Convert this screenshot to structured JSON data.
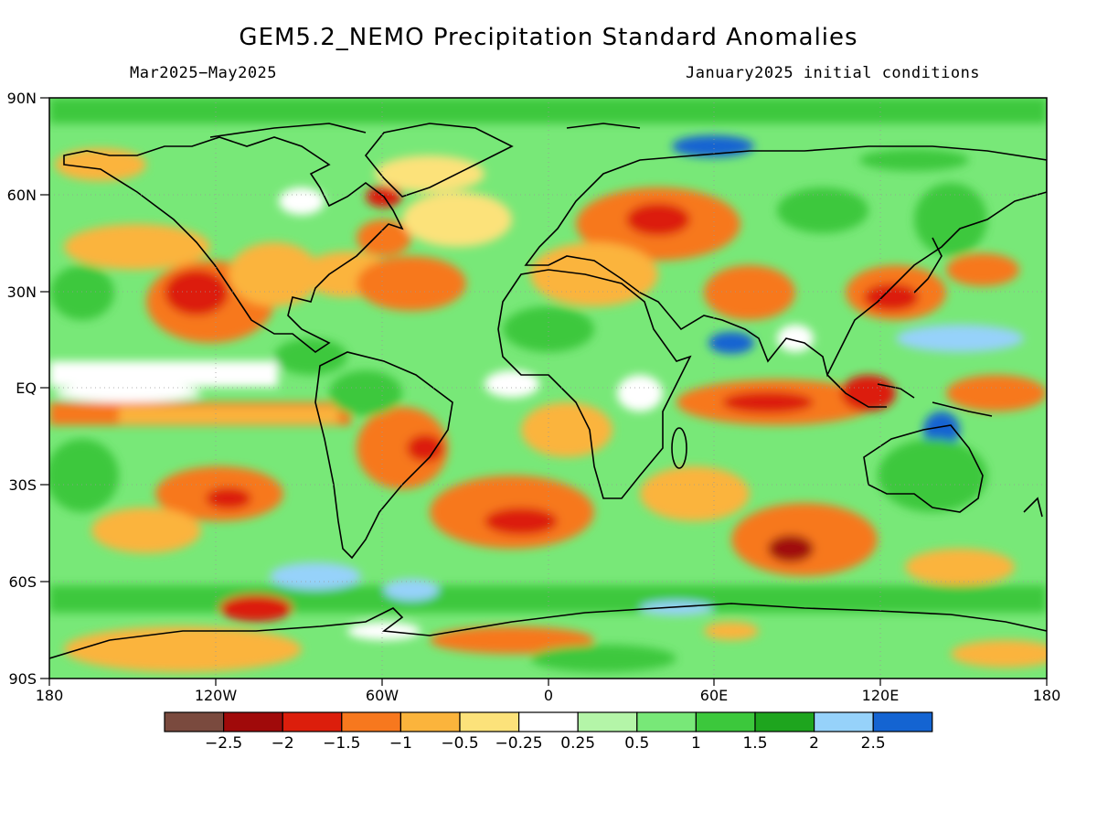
{
  "title": "GEM5.2_NEMO Precipitation Standard Anomalies",
  "subtitle_left": "Mar2025−May2025",
  "subtitle_right": "January2025 initial conditions",
  "map": {
    "lat_labels": [
      "90N",
      "60N",
      "30N",
      "EQ",
      "30S",
      "60S",
      "90S"
    ],
    "lon_labels": [
      "180",
      "120W",
      "60W",
      "0",
      "60E",
      "120E",
      "180"
    ],
    "colors": {
      "frame": "#000000",
      "coastline": "#000000"
    }
  },
  "legend": {
    "bins": [
      {
        "color": "#7a4a3e"
      },
      {
        "color": "#a00a0a"
      },
      {
        "color": "#dc1e0c"
      },
      {
        "color": "#f7781e"
      },
      {
        "color": "#fbb43c"
      },
      {
        "color": "#fce27a"
      },
      {
        "color": "#ffffff"
      },
      {
        "color": "#b4f5a8"
      },
      {
        "color": "#78e878"
      },
      {
        "color": "#3cc83c"
      },
      {
        "color": "#1ea51e"
      },
      {
        "color": "#96d2fa"
      },
      {
        "color": "#1464d2"
      }
    ],
    "labels": [
      "−2.5",
      "−2",
      "−1.5",
      "−1",
      "−0.5",
      "−0.25",
      "0.25",
      "0.5",
      "1",
      "1.5",
      "2",
      "2.5"
    ]
  }
}
